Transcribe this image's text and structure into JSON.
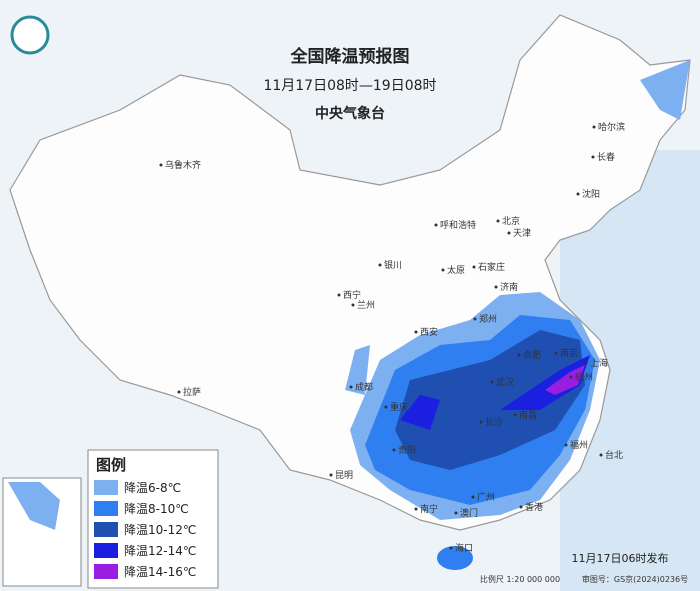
{
  "header": {
    "title": "全国降温预报图",
    "period": "11月17日08时—19日08时",
    "issuer": "中央气象台"
  },
  "legend": {
    "title": "图例",
    "items": [
      {
        "label": "降温6-8℃",
        "color": "#7db0f0"
      },
      {
        "label": "降温8-10℃",
        "color": "#2f7ff0"
      },
      {
        "label": "降温10-12℃",
        "color": "#1f4fb0"
      },
      {
        "label": "降温12-14℃",
        "color": "#1a1fe0"
      },
      {
        "label": "降温14-16℃",
        "color": "#9a1ee0"
      }
    ]
  },
  "cities": [
    "乌鲁木齐",
    "哈尔滨",
    "长春",
    "沈阳",
    "呼和浩特",
    "北京",
    "天津",
    "银川",
    "太原",
    "石家庄",
    "西宁",
    "兰州",
    "济南",
    "郑州",
    "西安",
    "合肥",
    "南京",
    "上海",
    "成都",
    "武汉",
    "杭州",
    "拉萨",
    "重庆",
    "长沙",
    "南昌",
    "福州",
    "贵阳",
    "台北",
    "昆明",
    "南宁",
    "广州",
    "澳门",
    "香港",
    "海口"
  ],
  "footer": {
    "issued": "11月17日06时发布",
    "scale": "比例尺 1:20 000 000",
    "approval": "审图号：GS京(2024)0236号"
  }
}
